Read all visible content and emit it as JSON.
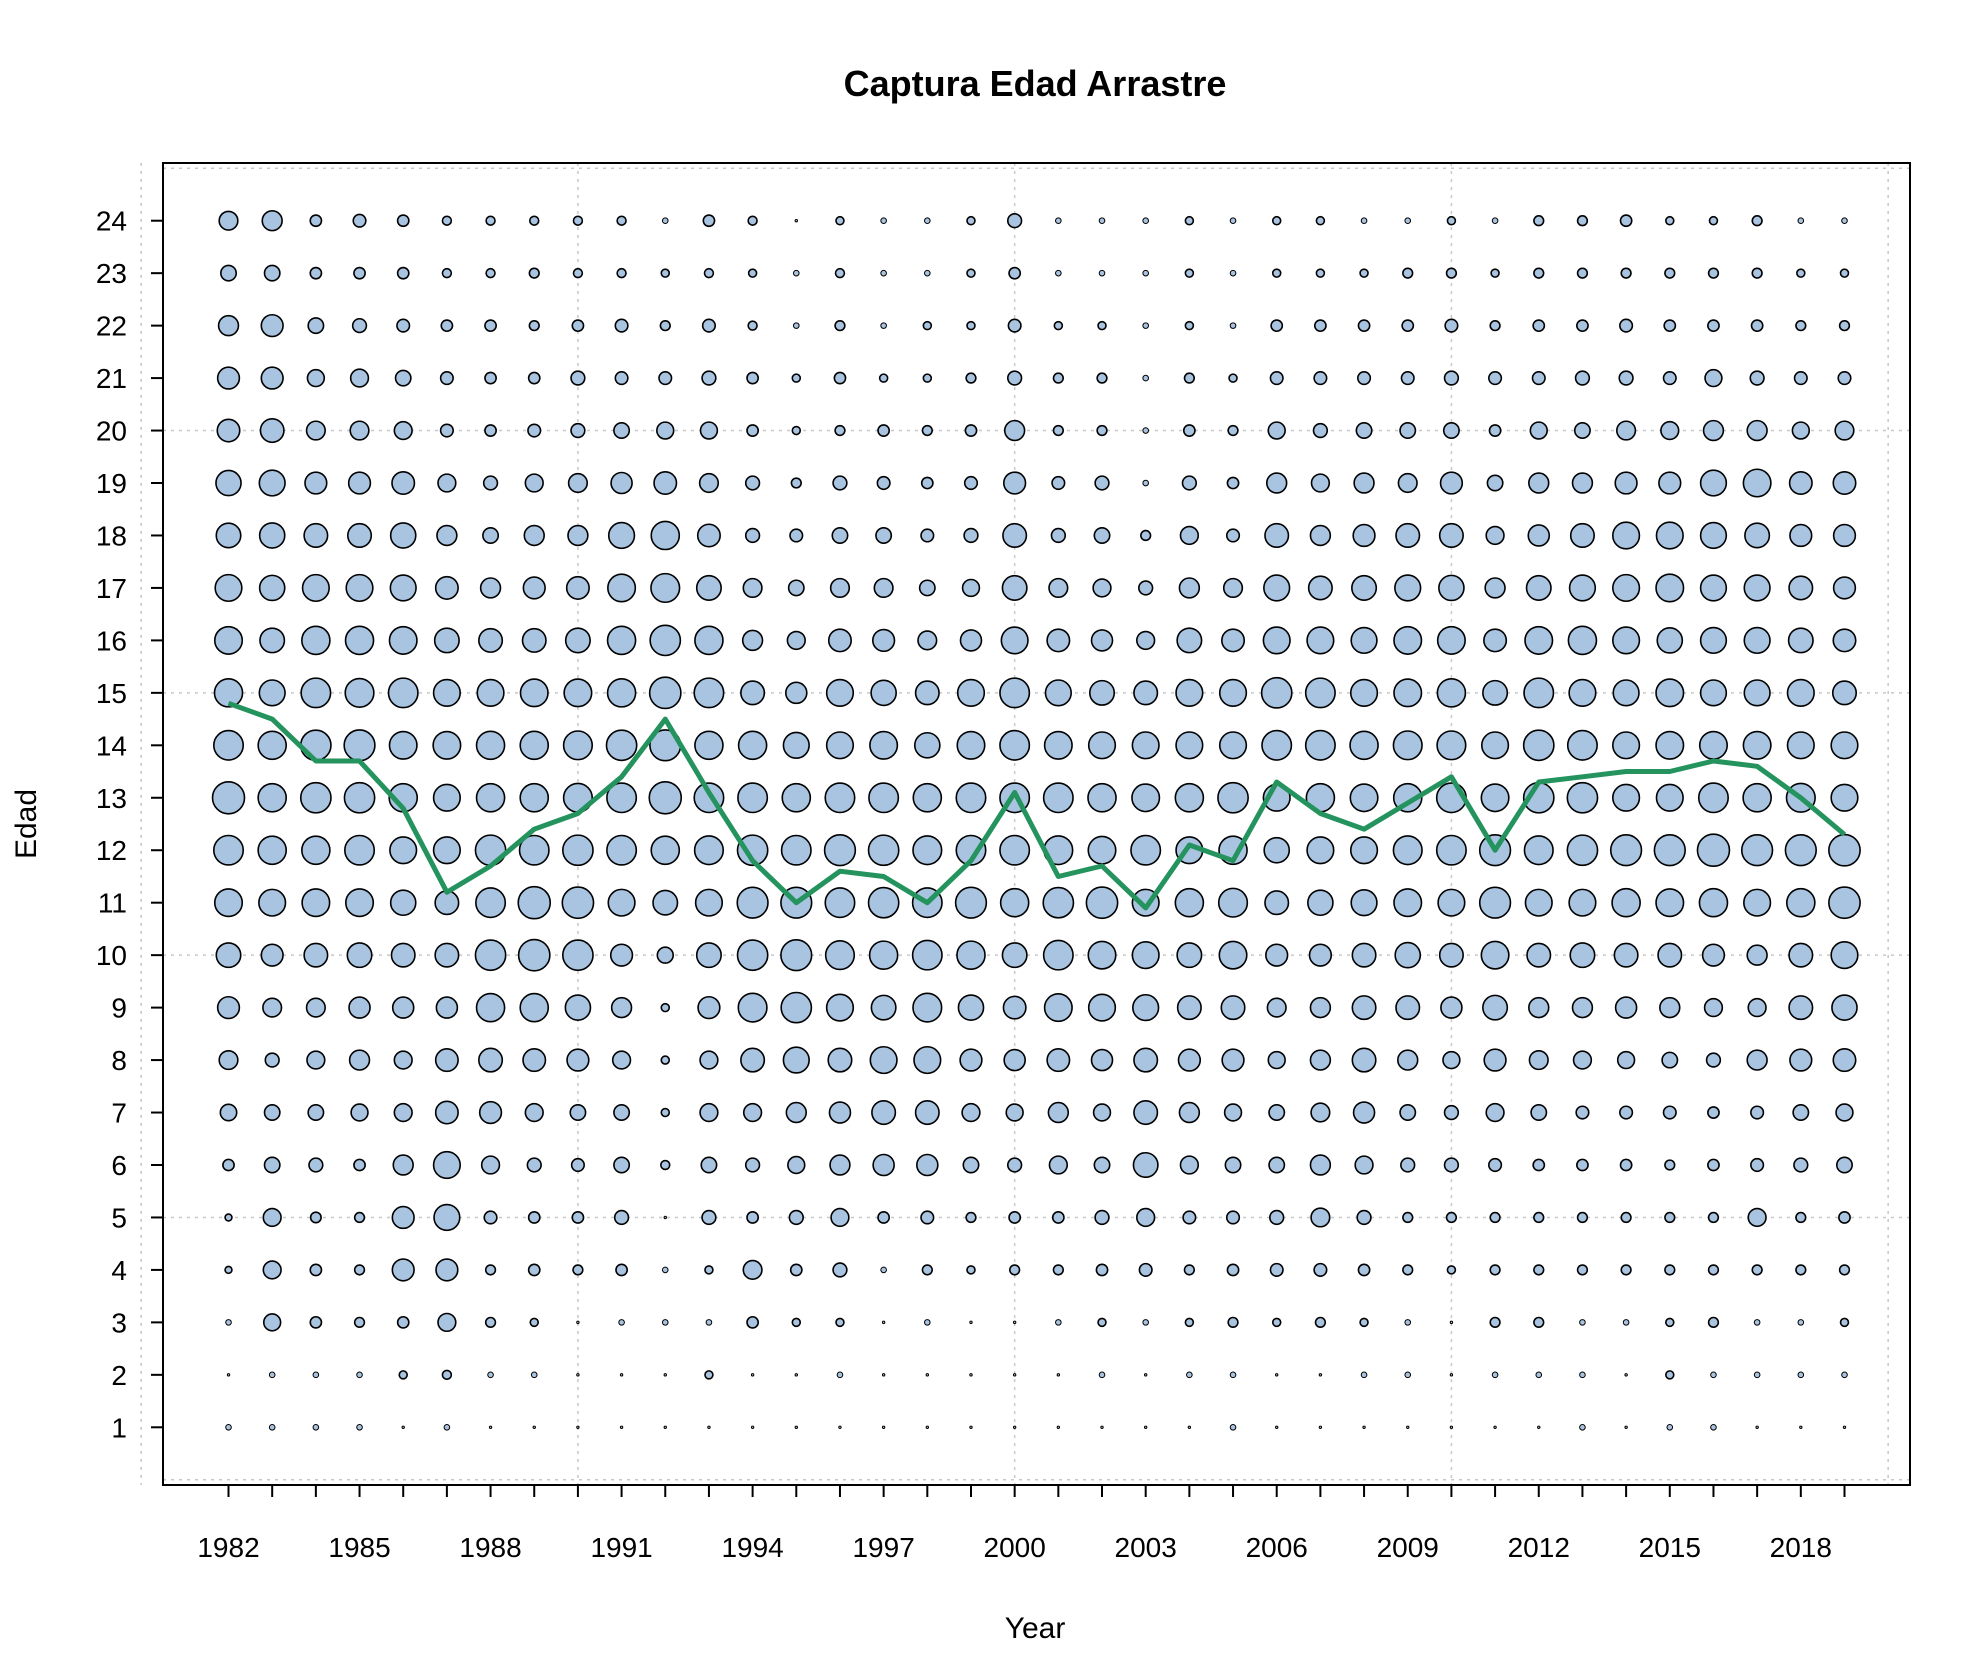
{
  "chart_data": {
    "type": "scatter",
    "subtype": "bubble",
    "title": "Captura Edad Arrastre",
    "xlabel": "Year",
    "ylabel": "Edad",
    "years": [
      1982,
      1983,
      1984,
      1985,
      1986,
      1987,
      1988,
      1989,
      1990,
      1991,
      1992,
      1993,
      1994,
      1995,
      1996,
      1997,
      1998,
      1999,
      2000,
      2001,
      2002,
      2003,
      2004,
      2005,
      2006,
      2007,
      2008,
      2009,
      2010,
      2011,
      2012,
      2013,
      2014,
      2015,
      2016,
      2017,
      2018,
      2019
    ],
    "ages": [
      1,
      2,
      3,
      4,
      5,
      6,
      7,
      8,
      9,
      10,
      11,
      12,
      13,
      14,
      15,
      16,
      17,
      18,
      19,
      20,
      21,
      22,
      23,
      24
    ],
    "x_ticks": [
      1982,
      1985,
      1988,
      1991,
      1994,
      1997,
      2000,
      2003,
      2006,
      2009,
      2012,
      2015,
      2018
    ],
    "y_ticks": [
      1,
      2,
      3,
      4,
      5,
      6,
      7,
      8,
      9,
      10,
      11,
      12,
      13,
      14,
      15,
      16,
      17,
      18,
      19,
      20,
      21,
      22,
      23,
      24
    ],
    "xlim": [
      1980.5,
      2020.5
    ],
    "ylim": [
      -0.1,
      25.1
    ],
    "grid": true,
    "bubble_color": "#a8c4e0",
    "bubble_stroke": "#000000",
    "line_color": "#24935d",
    "bubble_size_matrix_note": "rows ordered by year (1982..2019), columns by age 1..24; values are relative proportions 0-1",
    "bubble_values": [
      [
        0.02,
        0,
        0.02,
        0.03,
        0.03,
        0.08,
        0.17,
        0.22,
        0.3,
        0.38,
        0.48,
        0.55,
        0.65,
        0.55,
        0.5,
        0.48,
        0.45,
        0.38,
        0.4,
        0.32,
        0.3,
        0.25,
        0.15,
        0.22
      ],
      [
        0.02,
        0.02,
        0.18,
        0.2,
        0.2,
        0.15,
        0.15,
        0.12,
        0.22,
        0.3,
        0.45,
        0.5,
        0.5,
        0.5,
        0.42,
        0.38,
        0.4,
        0.4,
        0.42,
        0.35,
        0.3,
        0.3,
        0.15,
        0.25
      ],
      [
        0.02,
        0.02,
        0.08,
        0.08,
        0.07,
        0.12,
        0.15,
        0.2,
        0.22,
        0.35,
        0.48,
        0.5,
        0.58,
        0.58,
        0.55,
        0.5,
        0.45,
        0.35,
        0.3,
        0.22,
        0.18,
        0.15,
        0.08,
        0.08
      ],
      [
        0.02,
        0.02,
        0.06,
        0.06,
        0.06,
        0.08,
        0.18,
        0.25,
        0.28,
        0.38,
        0.48,
        0.55,
        0.58,
        0.6,
        0.52,
        0.5,
        0.45,
        0.35,
        0.3,
        0.22,
        0.2,
        0.12,
        0.08,
        0.1
      ],
      [
        0,
        0.04,
        0.08,
        0.3,
        0.3,
        0.25,
        0.2,
        0.2,
        0.28,
        0.35,
        0.4,
        0.45,
        0.5,
        0.48,
        0.55,
        0.48,
        0.42,
        0.4,
        0.32,
        0.2,
        0.15,
        0.1,
        0.08,
        0.08
      ],
      [
        0.02,
        0.05,
        0.2,
        0.3,
        0.42,
        0.45,
        0.32,
        0.32,
        0.28,
        0.35,
        0.35,
        0.45,
        0.45,
        0.48,
        0.45,
        0.38,
        0.32,
        0.25,
        0.2,
        0.1,
        0.1,
        0.08,
        0.05,
        0.05
      ],
      [
        0,
        0.02,
        0.06,
        0.06,
        0.1,
        0.2,
        0.3,
        0.35,
        0.5,
        0.58,
        0.55,
        0.58,
        0.5,
        0.5,
        0.45,
        0.35,
        0.25,
        0.15,
        0.12,
        0.08,
        0.08,
        0.08,
        0.05,
        0.05
      ],
      [
        0,
        0.02,
        0.04,
        0.08,
        0.08,
        0.12,
        0.2,
        0.32,
        0.5,
        0.62,
        0.65,
        0.55,
        0.5,
        0.5,
        0.48,
        0.35,
        0.3,
        0.25,
        0.2,
        0.1,
        0.08,
        0.06,
        0.06,
        0.05
      ],
      [
        0,
        0,
        0,
        0.06,
        0.08,
        0.1,
        0.15,
        0.3,
        0.4,
        0.58,
        0.62,
        0.58,
        0.52,
        0.52,
        0.48,
        0.38,
        0.32,
        0.25,
        0.22,
        0.12,
        0.12,
        0.08,
        0.05,
        0.05
      ],
      [
        0,
        0,
        0.02,
        0.08,
        0.12,
        0.15,
        0.15,
        0.2,
        0.25,
        0.3,
        0.45,
        0.55,
        0.55,
        0.58,
        0.5,
        0.5,
        0.48,
        0.42,
        0.28,
        0.15,
        0.1,
        0.1,
        0.05,
        0.05
      ],
      [
        0,
        0,
        0.02,
        0.02,
        0,
        0.05,
        0.04,
        0.04,
        0.04,
        0.16,
        0.38,
        0.5,
        0.65,
        0.6,
        0.62,
        0.58,
        0.52,
        0.5,
        0.32,
        0.18,
        0.1,
        0.06,
        0.04,
        0.02
      ],
      [
        0,
        0.04,
        0.02,
        0.04,
        0.12,
        0.15,
        0.2,
        0.2,
        0.3,
        0.38,
        0.45,
        0.52,
        0.55,
        0.5,
        0.55,
        0.5,
        0.38,
        0.32,
        0.22,
        0.18,
        0.12,
        0.1,
        0.05,
        0.08
      ],
      [
        0,
        0,
        0.08,
        0.22,
        0.08,
        0.12,
        0.2,
        0.35,
        0.52,
        0.58,
        0.6,
        0.58,
        0.55,
        0.5,
        0.35,
        0.25,
        0.22,
        0.12,
        0.12,
        0.08,
        0.08,
        0.05,
        0.04,
        0.05
      ],
      [
        0,
        0,
        0.04,
        0.08,
        0.12,
        0.18,
        0.25,
        0.42,
        0.58,
        0.6,
        0.6,
        0.55,
        0.5,
        0.42,
        0.28,
        0.2,
        0.15,
        0.1,
        0.06,
        0.04,
        0.04,
        0.02,
        0.02,
        0
      ],
      [
        0,
        0.02,
        0.04,
        0.12,
        0.2,
        0.25,
        0.28,
        0.35,
        0.45,
        0.52,
        0.55,
        0.6,
        0.55,
        0.45,
        0.45,
        0.32,
        0.22,
        0.15,
        0.12,
        0.06,
        0.08,
        0.06,
        0.05,
        0.04
      ],
      [
        0,
        0,
        0,
        0.02,
        0.08,
        0.28,
        0.35,
        0.45,
        0.38,
        0.5,
        0.58,
        0.58,
        0.55,
        0.48,
        0.4,
        0.3,
        0.22,
        0.15,
        0.1,
        0.08,
        0.04,
        0.02,
        0.02,
        0.02
      ],
      [
        0,
        0,
        0.02,
        0.06,
        0.1,
        0.28,
        0.35,
        0.45,
        0.52,
        0.55,
        0.55,
        0.52,
        0.5,
        0.4,
        0.35,
        0.22,
        0.15,
        0.1,
        0.08,
        0.06,
        0.04,
        0.04,
        0.02,
        0.02
      ],
      [
        0,
        0,
        0,
        0.04,
        0.06,
        0.15,
        0.2,
        0.3,
        0.4,
        0.5,
        0.6,
        0.55,
        0.55,
        0.48,
        0.45,
        0.28,
        0.18,
        0.12,
        0.1,
        0.08,
        0.06,
        0.04,
        0.04,
        0.04
      ],
      [
        0,
        0,
        0,
        0.06,
        0.08,
        0.12,
        0.18,
        0.28,
        0.32,
        0.38,
        0.5,
        0.55,
        0.55,
        0.55,
        0.55,
        0.45,
        0.38,
        0.35,
        0.3,
        0.25,
        0.12,
        0.1,
        0.08,
        0.12
      ],
      [
        0,
        0,
        0.02,
        0.06,
        0.08,
        0.2,
        0.25,
        0.32,
        0.48,
        0.55,
        0.58,
        0.52,
        0.55,
        0.48,
        0.42,
        0.32,
        0.22,
        0.12,
        0.1,
        0.06,
        0.06,
        0.04,
        0.02,
        0.02
      ],
      [
        0,
        0.02,
        0.04,
        0.08,
        0.12,
        0.15,
        0.18,
        0.28,
        0.45,
        0.48,
        0.62,
        0.48,
        0.5,
        0.45,
        0.38,
        0.28,
        0.2,
        0.15,
        0.12,
        0.06,
        0.06,
        0.04,
        0.02,
        0.02
      ],
      [
        0,
        0,
        0.02,
        0.1,
        0.2,
        0.38,
        0.35,
        0.35,
        0.42,
        0.45,
        0.45,
        0.55,
        0.48,
        0.45,
        0.35,
        0.2,
        0.12,
        0.06,
        0.02,
        0.02,
        0.02,
        0.02,
        0.02,
        0.02
      ],
      [
        0,
        0.02,
        0.04,
        0.06,
        0.1,
        0.2,
        0.25,
        0.3,
        0.35,
        0.38,
        0.5,
        0.45,
        0.5,
        0.45,
        0.45,
        0.38,
        0.25,
        0.2,
        0.12,
        0.08,
        0.06,
        0.04,
        0.04,
        0.04
      ],
      [
        0.02,
        0.02,
        0.06,
        0.08,
        0.1,
        0.15,
        0.18,
        0.3,
        0.35,
        0.48,
        0.52,
        0.5,
        0.58,
        0.45,
        0.45,
        0.32,
        0.22,
        0.1,
        0.08,
        0.06,
        0.04,
        0.02,
        0.02,
        0.02
      ],
      [
        0,
        0,
        0.04,
        0.1,
        0.12,
        0.15,
        0.15,
        0.18,
        0.22,
        0.3,
        0.35,
        0.4,
        0.45,
        0.55,
        0.58,
        0.45,
        0.42,
        0.35,
        0.25,
        0.18,
        0.1,
        0.08,
        0.04,
        0.04
      ],
      [
        0,
        0,
        0.06,
        0.1,
        0.22,
        0.25,
        0.22,
        0.25,
        0.25,
        0.3,
        0.4,
        0.45,
        0.5,
        0.55,
        0.55,
        0.45,
        0.35,
        0.25,
        0.2,
        0.12,
        0.1,
        0.08,
        0.04,
        0.04
      ],
      [
        0,
        0.02,
        0.04,
        0.08,
        0.12,
        0.2,
        0.28,
        0.35,
        0.35,
        0.35,
        0.42,
        0.45,
        0.48,
        0.5,
        0.45,
        0.42,
        0.38,
        0.3,
        0.25,
        0.15,
        0.1,
        0.08,
        0.04,
        0.02
      ],
      [
        0,
        0.02,
        0.02,
        0.06,
        0.06,
        0.12,
        0.15,
        0.25,
        0.35,
        0.4,
        0.48,
        0.52,
        0.5,
        0.52,
        0.48,
        0.48,
        0.42,
        0.35,
        0.22,
        0.15,
        0.1,
        0.08,
        0.06,
        0.02
      ],
      [
        0,
        0,
        0,
        0.04,
        0.06,
        0.12,
        0.12,
        0.18,
        0.28,
        0.35,
        0.45,
        0.55,
        0.55,
        0.52,
        0.5,
        0.48,
        0.4,
        0.35,
        0.3,
        0.15,
        0.12,
        0.1,
        0.06,
        0.04
      ],
      [
        0,
        0.02,
        0.06,
        0.06,
        0.06,
        0.1,
        0.2,
        0.3,
        0.38,
        0.48,
        0.6,
        0.6,
        0.48,
        0.45,
        0.38,
        0.32,
        0.25,
        0.2,
        0.15,
        0.08,
        0.1,
        0.06,
        0.04,
        0.02
      ],
      [
        0,
        0.02,
        0.06,
        0.06,
        0.06,
        0.08,
        0.15,
        0.22,
        0.25,
        0.35,
        0.45,
        0.52,
        0.58,
        0.58,
        0.55,
        0.48,
        0.38,
        0.28,
        0.25,
        0.18,
        0.1,
        0.08,
        0.06,
        0.06
      ],
      [
        0.02,
        0.02,
        0.02,
        0.06,
        0.06,
        0.08,
        0.1,
        0.2,
        0.25,
        0.38,
        0.45,
        0.58,
        0.58,
        0.55,
        0.45,
        0.5,
        0.42,
        0.35,
        0.25,
        0.15,
        0.12,
        0.08,
        0.06,
        0.06
      ],
      [
        0,
        0,
        0.02,
        0.06,
        0.06,
        0.08,
        0.1,
        0.18,
        0.28,
        0.35,
        0.5,
        0.6,
        0.45,
        0.45,
        0.42,
        0.45,
        0.45,
        0.45,
        0.3,
        0.22,
        0.12,
        0.1,
        0.06,
        0.08
      ],
      [
        0.02,
        0.04,
        0.04,
        0.06,
        0.06,
        0.06,
        0.1,
        0.15,
        0.25,
        0.35,
        0.48,
        0.6,
        0.45,
        0.48,
        0.48,
        0.4,
        0.48,
        0.45,
        0.3,
        0.2,
        0.1,
        0.08,
        0.06,
        0.04
      ],
      [
        0.02,
        0.02,
        0.06,
        0.06,
        0.06,
        0.08,
        0.08,
        0.12,
        0.2,
        0.3,
        0.5,
        0.65,
        0.55,
        0.48,
        0.42,
        0.42,
        0.42,
        0.42,
        0.42,
        0.25,
        0.18,
        0.08,
        0.06,
        0.04
      ],
      [
        0,
        0.02,
        0.02,
        0.06,
        0.2,
        0.1,
        0.1,
        0.25,
        0.2,
        0.25,
        0.45,
        0.6,
        0.5,
        0.48,
        0.42,
        0.42,
        0.42,
        0.38,
        0.48,
        0.25,
        0.12,
        0.08,
        0.06,
        0.06
      ],
      [
        0,
        0.02,
        0.02,
        0.06,
        0.06,
        0.12,
        0.15,
        0.3,
        0.35,
        0.35,
        0.5,
        0.6,
        0.52,
        0.45,
        0.45,
        0.38,
        0.35,
        0.3,
        0.32,
        0.18,
        0.1,
        0.06,
        0.04,
        0.02
      ],
      [
        0,
        0.02,
        0.04,
        0.06,
        0.08,
        0.15,
        0.18,
        0.32,
        0.4,
        0.45,
        0.62,
        0.62,
        0.45,
        0.45,
        0.35,
        0.32,
        0.3,
        0.3,
        0.32,
        0.22,
        0.1,
        0.06,
        0.04,
        0.02
      ]
    ],
    "mean_age_line": [
      14.8,
      14.5,
      13.7,
      13.7,
      12.8,
      11.2,
      11.7,
      12.4,
      12.7,
      13.4,
      14.5,
      13.1,
      11.8,
      11.0,
      11.6,
      11.5,
      11.0,
      11.8,
      13.1,
      11.5,
      11.7,
      10.9,
      12.1,
      11.8,
      13.3,
      12.7,
      12.4,
      12.9,
      13.4,
      12.0,
      13.3,
      13.4,
      13.5,
      13.5,
      13.7,
      13.6,
      13.0,
      12.3
    ]
  }
}
